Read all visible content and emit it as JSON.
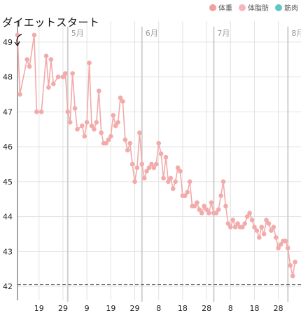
{
  "legend": [
    {
      "label": "体重",
      "color": "#f0a0a0"
    },
    {
      "label": "体脂肪",
      "color": "#f4b8bc"
    },
    {
      "label": "筋肉",
      "color": "#5cc7c7"
    }
  ],
  "annotation": "ダイエットスタート",
  "colors": {
    "series": "#f2aaaa",
    "grid": "#e2e2e2",
    "month_line": "#cfcfcf",
    "target": "#555555"
  },
  "chart_data": {
    "type": "line",
    "title": "",
    "xlabel": "",
    "ylabel": "",
    "ylim": [
      41.6,
      49.6
    ],
    "y_ticks": [
      42,
      43,
      44,
      45,
      46,
      47,
      48,
      49
    ],
    "x_ticks": [
      {
        "day": 9,
        "label": "19"
      },
      {
        "day": 19,
        "label": "29"
      },
      {
        "day": 29,
        "label": "9"
      },
      {
        "day": 39,
        "label": "19"
      },
      {
        "day": 49,
        "label": "29"
      },
      {
        "day": 59,
        "label": "8"
      },
      {
        "day": 69,
        "label": "18"
      },
      {
        "day": 79,
        "label": "28"
      },
      {
        "day": 89,
        "label": "8"
      },
      {
        "day": 99,
        "label": "18"
      },
      {
        "day": 109,
        "label": "28"
      }
    ],
    "months": [
      {
        "day": 21,
        "label": "5月"
      },
      {
        "day": 52,
        "label": "6月"
      },
      {
        "day": 82,
        "label": "7月"
      },
      {
        "day": 113,
        "label": "8月"
      }
    ],
    "x_range": [
      0,
      117
    ],
    "target_line": 42.05,
    "series": [
      {
        "name": "体重",
        "x": [
          0,
          1,
          4,
          5,
          7,
          8,
          10,
          12,
          13,
          14,
          15,
          17,
          19,
          20,
          21,
          22,
          23,
          24,
          25,
          27,
          28,
          29,
          30,
          31,
          32,
          33,
          34,
          35,
          36,
          37,
          38,
          39,
          40,
          41,
          42,
          43,
          44,
          45,
          46,
          47,
          48,
          49,
          50,
          51,
          52,
          53,
          54,
          55,
          56,
          57,
          58,
          59,
          60,
          61,
          62,
          63,
          64,
          65,
          66,
          67,
          68,
          69,
          70,
          71,
          72,
          73,
          74,
          75,
          76,
          77,
          78,
          79,
          80,
          81,
          82,
          83,
          84,
          85,
          86,
          87,
          88,
          89,
          90,
          91,
          92,
          93,
          94,
          95,
          96,
          97,
          98,
          99,
          100,
          101,
          102,
          103,
          104,
          105,
          106,
          107,
          108,
          109,
          110,
          111,
          112,
          113,
          114,
          115,
          116
        ],
        "y": [
          49.2,
          47.5,
          48.5,
          48.3,
          49.2,
          47.0,
          47.0,
          48.6,
          47.7,
          48.5,
          47.8,
          48.0,
          48.0,
          48.1,
          47.0,
          46.7,
          48.1,
          47.1,
          46.5,
          46.6,
          46.3,
          46.7,
          48.4,
          46.6,
          46.5,
          46.7,
          47.6,
          46.4,
          46.1,
          46.1,
          46.2,
          46.3,
          46.9,
          46.6,
          46.7,
          47.4,
          47.3,
          46.2,
          45.9,
          46.1,
          45.5,
          45.0,
          45.4,
          46.4,
          45.5,
          45.1,
          45.3,
          45.4,
          45.5,
          45.4,
          45.5,
          46.1,
          45.8,
          45.1,
          45.7,
          45.0,
          45.1,
          44.8,
          45.0,
          45.4,
          45.3,
          44.6,
          44.6,
          44.7,
          45.0,
          44.3,
          44.3,
          44.4,
          44.2,
          44.1,
          44.3,
          44.2,
          44.1,
          44.4,
          44.1,
          44.1,
          44.2,
          44.6,
          45.0,
          44.3,
          43.8,
          43.7,
          43.9,
          43.7,
          43.8,
          43.7,
          43.7,
          43.8,
          44.0,
          44.1,
          43.9,
          43.7,
          43.6,
          43.4,
          43.7,
          43.5,
          43.9,
          43.8,
          43.6,
          43.7,
          43.4,
          43.1,
          43.2,
          43.3,
          43.3,
          43.1,
          42.6,
          42.3,
          42.7
        ]
      }
    ]
  }
}
